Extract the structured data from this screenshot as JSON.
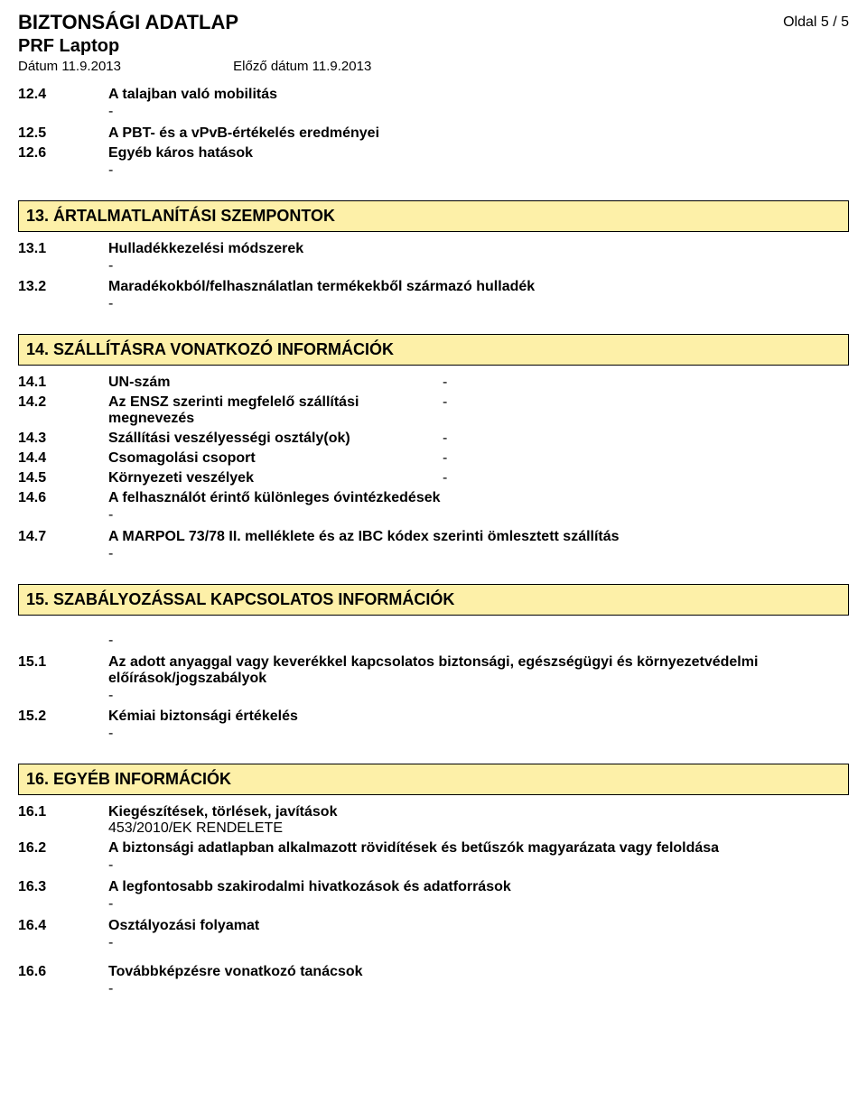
{
  "header": {
    "doc_title": "BIZTONSÁGI ADATLAP",
    "product": "PRF Laptop",
    "date_label": "Dátum 11.9.2013",
    "prev_date": "Előző dátum 11.9.2013",
    "page": "Oldal  5 / 5"
  },
  "s12": {
    "r1": {
      "num": "12.4",
      "label": "A talajban való mobilitás",
      "dash": "-"
    },
    "r2": {
      "num": "12.5",
      "label": "A PBT- és a vPvB-értékelés eredményei"
    },
    "r3": {
      "num": "12.6",
      "label": "Egyéb káros hatások",
      "dash": "-"
    }
  },
  "s13": {
    "title": "13. ÁRTALMATLANÍTÁSI SZEMPONTOK",
    "r1": {
      "num": "13.1",
      "label": "Hulladékkezelési módszerek",
      "dash": "-"
    },
    "r2": {
      "num": "13.2",
      "label": "Maradékokból/felhasználatlan termékekből származó hulladék",
      "dash": "-"
    }
  },
  "s14": {
    "title": "14. SZÁLLÍTÁSRA VONATKOZÓ INFORMÁCIÓK",
    "r1": {
      "num": "14.1",
      "label": "UN-szám",
      "val": "-"
    },
    "r2": {
      "num": "14.2",
      "label": "Az ENSZ szerinti megfelelő szállítási megnevezés",
      "val": "-"
    },
    "r3": {
      "num": "14.3",
      "label": "Szállítási veszélyességi osztály(ok)",
      "val": "-"
    },
    "r4": {
      "num": "14.4",
      "label": "Csomagolási csoport",
      "val": "-"
    },
    "r5": {
      "num": "14.5",
      "label": "Környezeti veszélyek",
      "val": "-"
    },
    "r6": {
      "num": "14.6",
      "label": "A felhasználót érintő különleges óvintézkedések",
      "dash": "-"
    },
    "r7": {
      "num": "14.7",
      "label": "A MARPOL 73/78 II. melléklete és az IBC kódex szerinti ömlesztett szállítás",
      "dash": "-"
    }
  },
  "s15": {
    "title": "15. SZABÁLYOZÁSSAL KAPCSOLATOS INFORMÁCIÓK",
    "pre_dash": "-",
    "r1": {
      "num": "15.1",
      "label": "Az adott anyaggal vagy keverékkel kapcsolatos biztonsági, egészségügyi és környezetvédelmi előírások/jogszabályok",
      "dash": "-"
    },
    "r2": {
      "num": "15.2",
      "label": "Kémiai biztonsági értékelés",
      "dash": "-"
    }
  },
  "s16": {
    "title": "16. EGYÉB INFORMÁCIÓK",
    "r1": {
      "num": "16.1",
      "label": "Kiegészítések, törlések, javítások",
      "sub": "453/2010/EK RENDELETE"
    },
    "r2": {
      "num": "16.2",
      "label": "A biztonsági adatlapban alkalmazott rövidítések és betűszók magyarázata vagy feloldása",
      "dash": "-"
    },
    "r3": {
      "num": "16.3",
      "label": "A legfontosabb szakirodalmi hivatkozások és adatforrások",
      "dash": "-"
    },
    "r4": {
      "num": "16.4",
      "label": "Osztályozási folyamat",
      "dash": "-"
    },
    "r5": {
      "num": "16.6",
      "label": "Továbbképzésre vonatkozó tanácsok",
      "dash": "-"
    }
  }
}
